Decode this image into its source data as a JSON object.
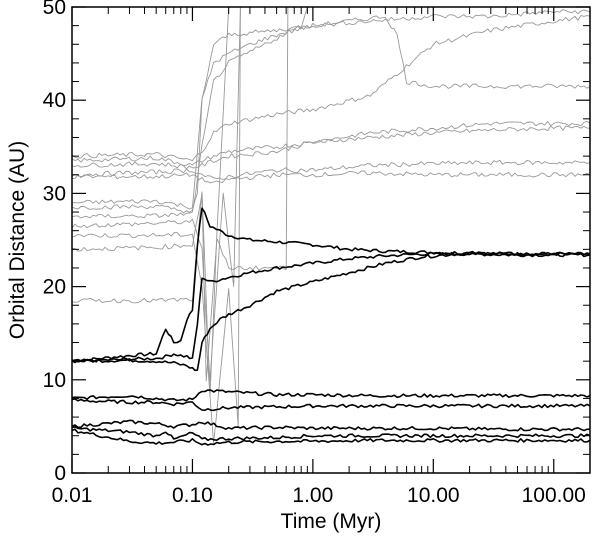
{
  "chart_data": {
    "type": "line",
    "title": "",
    "xlabel": "Time (Myr)",
    "ylabel": "Orbital Distance (AU)",
    "x_scale": "log",
    "xlim": [
      0.01,
      200
    ],
    "ylim": [
      0,
      50
    ],
    "x_ticks": [
      {
        "value": 0.01,
        "label": "0.01"
      },
      {
        "value": 0.1,
        "label": "0.10"
      },
      {
        "value": 1.0,
        "label": "1.00"
      },
      {
        "value": 10.0,
        "label": "10.00"
      },
      {
        "value": 100.0,
        "label": "100.00"
      }
    ],
    "y_ticks": [
      {
        "value": 0,
        "label": "0"
      },
      {
        "value": 10,
        "label": "10"
      },
      {
        "value": 20,
        "label": "20"
      },
      {
        "value": 30,
        "label": "30"
      },
      {
        "value": 40,
        "label": "40"
      },
      {
        "value": 50,
        "label": "50"
      }
    ],
    "grid": false,
    "colors": {
      "planets": "#000000",
      "planetesimals": "#999999"
    },
    "series": [
      {
        "group": "planets",
        "x": [
          0.01,
          0.03,
          0.05,
          0.06,
          0.07,
          0.08,
          0.09,
          0.1,
          0.11,
          0.12,
          0.14,
          0.2,
          0.3,
          0.5,
          1.0,
          2.0,
          4.0,
          8.0,
          20,
          50,
          200
        ],
        "y": [
          12.0,
          12.6,
          12.8,
          15.5,
          14.0,
          14.2,
          16.5,
          17.5,
          24.5,
          28.5,
          26.5,
          25.5,
          25.0,
          24.8,
          24.5,
          24.0,
          23.8,
          23.7,
          23.6,
          23.5,
          23.5
        ]
      },
      {
        "group": "planets",
        "x": [
          0.01,
          0.03,
          0.05,
          0.06,
          0.07,
          0.08,
          0.09,
          0.1,
          0.11,
          0.12,
          0.14,
          0.2,
          0.3,
          0.5,
          1.0,
          2.0,
          4.0,
          8.0,
          20,
          50,
          200
        ],
        "y": [
          12.0,
          12.2,
          12.3,
          12.5,
          12.8,
          12.6,
          12.5,
          12.2,
          16.0,
          21.0,
          20.5,
          21.0,
          21.5,
          22.0,
          22.5,
          23.0,
          23.3,
          23.5,
          23.5,
          23.4,
          23.4
        ]
      },
      {
        "group": "planets",
        "x": [
          0.01,
          0.03,
          0.05,
          0.07,
          0.09,
          0.1,
          0.11,
          0.12,
          0.14,
          0.17,
          0.2,
          0.3,
          0.5,
          1.0,
          2.0,
          4.0,
          8.0,
          20,
          50,
          200
        ],
        "y": [
          12.0,
          12.1,
          12.0,
          11.8,
          11.5,
          11.2,
          11.0,
          14.0,
          15.5,
          16.5,
          17.0,
          18.0,
          19.5,
          20.5,
          21.5,
          22.5,
          23.2,
          23.6,
          23.5,
          23.5
        ]
      },
      {
        "group": "planets",
        "x": [
          0.01,
          0.03,
          0.05,
          0.07,
          0.1,
          0.12,
          0.2,
          0.5,
          1.0,
          3.0,
          10,
          30,
          100,
          200
        ],
        "y": [
          8.0,
          8.3,
          8.0,
          7.8,
          7.9,
          8.9,
          8.7,
          8.4,
          8.4,
          8.3,
          8.3,
          8.3,
          8.3,
          8.3
        ]
      },
      {
        "group": "planets",
        "x": [
          0.01,
          0.03,
          0.05,
          0.07,
          0.1,
          0.12,
          0.2,
          0.5,
          1.0,
          3.0,
          10,
          30,
          100,
          200
        ],
        "y": [
          7.8,
          7.6,
          7.6,
          7.4,
          7.6,
          6.8,
          7.0,
          7.1,
          7.2,
          7.2,
          7.2,
          7.2,
          7.2,
          7.2
        ]
      },
      {
        "group": "planets",
        "x": [
          0.01,
          0.03,
          0.05,
          0.07,
          0.1,
          0.12,
          0.2,
          0.5,
          1.0,
          3.0,
          10,
          30,
          100,
          200
        ],
        "y": [
          5.0,
          5.5,
          5.3,
          5.0,
          5.2,
          5.5,
          4.8,
          4.9,
          4.8,
          4.8,
          4.8,
          4.7,
          4.7,
          4.7
        ]
      },
      {
        "group": "planets",
        "x": [
          0.01,
          0.03,
          0.05,
          0.06,
          0.07,
          0.1,
          0.12,
          0.2,
          0.5,
          1.0,
          3.0,
          10,
          30,
          100,
          200
        ],
        "y": [
          4.8,
          4.4,
          4.0,
          4.5,
          3.6,
          4.3,
          3.6,
          3.7,
          3.8,
          4.0,
          4.0,
          4.0,
          4.0,
          4.0,
          4.0
        ]
      },
      {
        "group": "planets",
        "x": [
          0.01,
          0.03,
          0.05,
          0.07,
          0.1,
          0.12,
          0.2,
          0.5,
          1.0,
          3.0,
          10,
          30,
          100,
          200
        ],
        "y": [
          4.6,
          3.4,
          3.2,
          3.3,
          3.5,
          3.1,
          3.3,
          3.4,
          3.4,
          3.5,
          3.5,
          3.5,
          3.5,
          3.5
        ]
      },
      {
        "group": "planetesimals",
        "x": [
          0.01,
          0.05,
          0.1,
          0.12,
          0.15,
          0.2,
          0.5,
          1.0,
          3.0,
          10,
          30,
          100,
          200
        ],
        "y": [
          34.0,
          34.2,
          33.5,
          34.5,
          36.5,
          37.5,
          38.5,
          39.0,
          40.5,
          46.0,
          47.5,
          48.5,
          49.0
        ]
      },
      {
        "group": "planetesimals",
        "x": [
          0.01,
          0.05,
          0.1,
          0.12,
          0.15,
          0.2,
          0.5,
          1.0,
          3.0,
          10,
          30,
          100,
          200
        ],
        "y": [
          33.5,
          33.8,
          33.0,
          33.5,
          34.0,
          34.5,
          35.0,
          35.5,
          36.5,
          37.0,
          37.5,
          37.5,
          37.5
        ]
      },
      {
        "group": "planetesimals",
        "x": [
          0.01,
          0.05,
          0.1,
          0.12,
          0.15,
          0.2,
          0.5,
          1.0,
          3.0,
          10,
          30,
          100,
          200
        ],
        "y": [
          33.0,
          33.2,
          32.8,
          33.0,
          33.5,
          34.0,
          34.5,
          35.5,
          36.0,
          36.5,
          36.8,
          37.0,
          37.0
        ]
      },
      {
        "group": "planetesimals",
        "x": [
          0.01,
          0.05,
          0.1,
          0.12,
          0.15,
          0.2,
          0.5,
          1.0,
          3.0,
          10,
          30,
          100,
          200
        ],
        "y": [
          32.0,
          32.3,
          32.5,
          32.0,
          31.5,
          31.8,
          32.5,
          32.5,
          33.0,
          33.2,
          33.3,
          33.3,
          33.3
        ]
      },
      {
        "group": "planetesimals",
        "x": [
          0.01,
          0.05,
          0.1,
          0.12,
          0.15,
          0.2,
          0.5,
          1.0,
          3.0,
          10,
          30,
          100,
          200
        ],
        "y": [
          31.8,
          31.8,
          32.0,
          31.5,
          31.0,
          31.5,
          32.0,
          32.0,
          32.2,
          32.0,
          32.0,
          32.0,
          32.0
        ]
      },
      {
        "group": "planetesimals",
        "x": [
          0.01,
          0.05,
          0.1,
          0.12,
          0.15,
          0.2,
          0.3,
          0.5,
          1.0,
          2.0,
          4.0,
          5.0,
          6.0,
          10,
          30,
          100,
          200
        ],
        "y": [
          29.0,
          29.2,
          28.5,
          40.0,
          44.0,
          45.0,
          46.0,
          47.0,
          48.0,
          48.5,
          49.0,
          47.0,
          42.0,
          41.5,
          41.5,
          41.5,
          41.5
        ]
      },
      {
        "group": "planetesimals",
        "x": [
          0.01,
          0.05,
          0.1,
          0.11,
          0.12,
          0.15,
          0.2,
          0.5,
          1.0,
          3.0,
          10,
          30,
          100,
          200
        ],
        "y": [
          28.5,
          28.6,
          28.0,
          30.0,
          40.0,
          46.0,
          47.0,
          47.5,
          48.0,
          48.5,
          49.0,
          49.0,
          49.5,
          49.5
        ]
      },
      {
        "group": "planetesimals",
        "x": [
          0.01,
          0.05,
          0.1,
          0.12,
          0.15,
          0.2,
          0.4,
          0.8,
          0.9
        ],
        "y": [
          27.5,
          27.6,
          27.8,
          35.0,
          42.0,
          44.0,
          46.0,
          48.0,
          50.0
        ]
      },
      {
        "group": "planetesimals",
        "x": [
          0.01,
          0.05,
          0.1,
          0.12,
          0.14,
          0.18,
          0.22,
          0.25
        ],
        "y": [
          26.5,
          26.8,
          27.0,
          24.0,
          10.0,
          30.0,
          20.0,
          50.0
        ]
      },
      {
        "group": "planetesimals",
        "x": [
          0.01,
          0.05,
          0.1,
          0.12,
          0.15,
          0.2,
          0.24,
          0.25
        ],
        "y": [
          25.5,
          25.5,
          25.6,
          20.0,
          3.0,
          20.0,
          5.0,
          50.0
        ]
      },
      {
        "group": "planetesimals",
        "x": [
          0.01,
          0.05,
          0.1,
          0.12,
          0.13,
          0.16,
          0.2,
          0.6,
          0.62
        ],
        "y": [
          24.0,
          24.2,
          24.5,
          30.0,
          10.0,
          25.0,
          22.0,
          22.0,
          50.0
        ]
      },
      {
        "group": "planetesimals",
        "x": [
          0.01,
          0.05,
          0.1,
          0.12,
          0.14,
          0.16,
          0.2
        ],
        "y": [
          18.5,
          18.5,
          18.6,
          30.0,
          8.0,
          26.0,
          50.0
        ]
      }
    ]
  }
}
